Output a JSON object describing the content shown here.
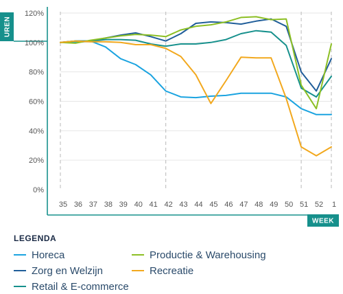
{
  "chart_data": {
    "type": "line",
    "xlabel": "WEEK",
    "ylabel": "UREN",
    "x": [
      "35",
      "36",
      "37",
      "38",
      "39",
      "40",
      "41",
      "42",
      "43",
      "44",
      "45",
      "46",
      "47",
      "48",
      "49",
      "50",
      "51",
      "52",
      "1"
    ],
    "ylim": [
      0,
      120
    ],
    "yticks": [
      0,
      20,
      40,
      60,
      80,
      100,
      120
    ],
    "ytick_labels": [
      "0%",
      "20%",
      "40%",
      "60%",
      "80%",
      "100%",
      "120%"
    ],
    "dashed_x": [
      "35",
      "42",
      "51",
      "1"
    ],
    "legend_title": "LEGENDA",
    "series": [
      {
        "name": "Horeca",
        "color": "#1aa3e0",
        "values": [
          100,
          100,
          101,
          97,
          89,
          85,
          78,
          67,
          63,
          62.5,
          63.5,
          64,
          65.5,
          65.5,
          65.5,
          63,
          55,
          51,
          51
        ]
      },
      {
        "name": "Zorg en Welzijn",
        "color": "#1f5d99",
        "values": [
          100,
          101,
          101,
          103,
          105,
          106.5,
          104,
          101,
          106,
          113,
          114,
          113.5,
          112.5,
          114.5,
          116,
          111,
          80,
          67,
          89
        ]
      },
      {
        "name": "Retail & E-commerce",
        "color": "#16908c",
        "values": [
          100,
          101,
          101,
          102,
          102,
          101.5,
          99,
          97.5,
          99,
          99,
          100,
          102,
          106,
          108,
          107,
          98,
          69,
          63,
          77
        ]
      },
      {
        "name": "Productie & Warehousing",
        "color": "#8cbf24",
        "values": [
          100,
          99.5,
          101.5,
          103,
          104.5,
          105.5,
          105,
          104,
          108.5,
          111,
          112,
          114,
          117,
          117.5,
          115.5,
          116,
          71,
          55,
          99
        ]
      },
      {
        "name": "Recreatie",
        "color": "#f2a81d",
        "values": [
          100,
          101,
          100.5,
          100.5,
          100,
          98.5,
          98.5,
          96,
          90.5,
          78,
          58.5,
          74,
          90,
          89.5,
          89.5,
          62,
          29,
          23,
          29
        ]
      }
    ]
  }
}
